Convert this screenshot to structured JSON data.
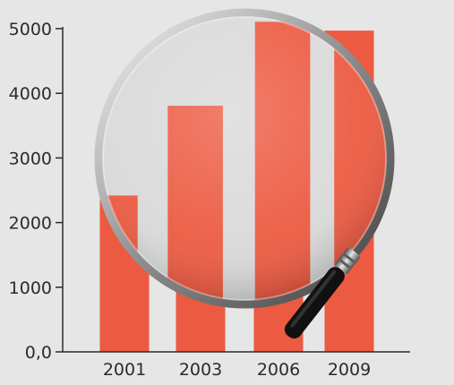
{
  "chart_data": {
    "type": "bar",
    "title": "",
    "xlabel": "",
    "ylabel": "",
    "categories": [
      "2001",
      "2003",
      "2006",
      "2009"
    ],
    "values": [
      2480,
      3720,
      4880,
      4970
    ],
    "ylim": [
      0,
      5000
    ],
    "y_ticks": [
      0,
      1000,
      2000,
      3000,
      4000,
      5000
    ],
    "y_tick_labels": [
      "0,0",
      "1000",
      "2000",
      "3000",
      "4000",
      "5000"
    ],
    "grid": false,
    "legend": "none",
    "colors": {
      "bar": "#ec5a41",
      "background": "#e6e6e6",
      "axis": "#2b2b2b"
    }
  },
  "overlay": {
    "icon": "magnifying-glass-icon"
  }
}
